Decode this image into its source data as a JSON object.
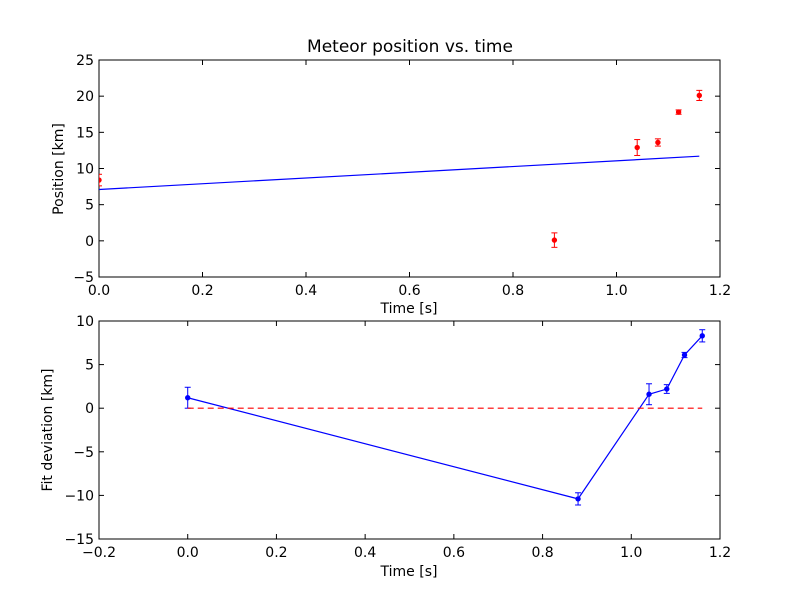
{
  "figure": {
    "title": "Meteor position vs. time"
  },
  "chart_data": [
    {
      "type": "scatter",
      "title": "Meteor position vs. time",
      "xlabel": "Time [s]",
      "ylabel": "Position [km]",
      "xlim": [
        0.0,
        1.2
      ],
      "ylim": [
        -5,
        25
      ],
      "xticks": [
        0.0,
        0.2,
        0.4,
        0.6,
        0.8,
        1.0,
        1.2
      ],
      "yticks": [
        -5,
        0,
        5,
        10,
        15,
        20,
        25
      ],
      "xtick_labels": [
        "0.0",
        "0.2",
        "0.4",
        "0.6",
        "0.8",
        "1.0",
        "1.2"
      ],
      "ytick_labels": [
        "−5",
        "0",
        "5",
        "10",
        "15",
        "20",
        "25"
      ],
      "grid": false,
      "series": [
        {
          "kind": "errorbar-points",
          "color": "#ff0000",
          "x": [
            0.0,
            0.88,
            1.04,
            1.08,
            1.12,
            1.16
          ],
          "y": [
            8.4,
            0.1,
            12.9,
            13.6,
            17.8,
            20.1
          ],
          "err": [
            0.8,
            1.0,
            1.1,
            0.5,
            0.3,
            0.7
          ]
        },
        {
          "kind": "line",
          "color": "#0000ff",
          "x": [
            0.0,
            1.16
          ],
          "y": [
            7.1,
            11.7
          ]
        }
      ]
    },
    {
      "type": "line",
      "xlabel": "Time [s]",
      "ylabel": "Fit deviation [km]",
      "xlim": [
        -0.2,
        1.2
      ],
      "ylim": [
        -15,
        10
      ],
      "xticks": [
        -0.2,
        0.0,
        0.2,
        0.4,
        0.6,
        0.8,
        1.0,
        1.2
      ],
      "yticks": [
        -15,
        -10,
        -5,
        0,
        5,
        10
      ],
      "xtick_labels": [
        "−0.2",
        "0.0",
        "0.2",
        "0.4",
        "0.6",
        "0.8",
        "1.0",
        "1.2"
      ],
      "ytick_labels": [
        "−15",
        "−10",
        "−5",
        "0",
        "5",
        "10"
      ],
      "grid": false,
      "series": [
        {
          "kind": "errorbar-line",
          "color": "#0000ff",
          "x": [
            0.0,
            0.88,
            1.04,
            1.08,
            1.12,
            1.16
          ],
          "y": [
            1.2,
            -10.4,
            1.6,
            2.2,
            6.1,
            8.3
          ],
          "err": [
            1.2,
            0.7,
            1.2,
            0.5,
            0.3,
            0.7
          ]
        },
        {
          "kind": "dashed-line",
          "color": "#ff0000",
          "x": [
            0.0,
            1.16
          ],
          "y": [
            0.0,
            0.0
          ]
        }
      ]
    }
  ]
}
